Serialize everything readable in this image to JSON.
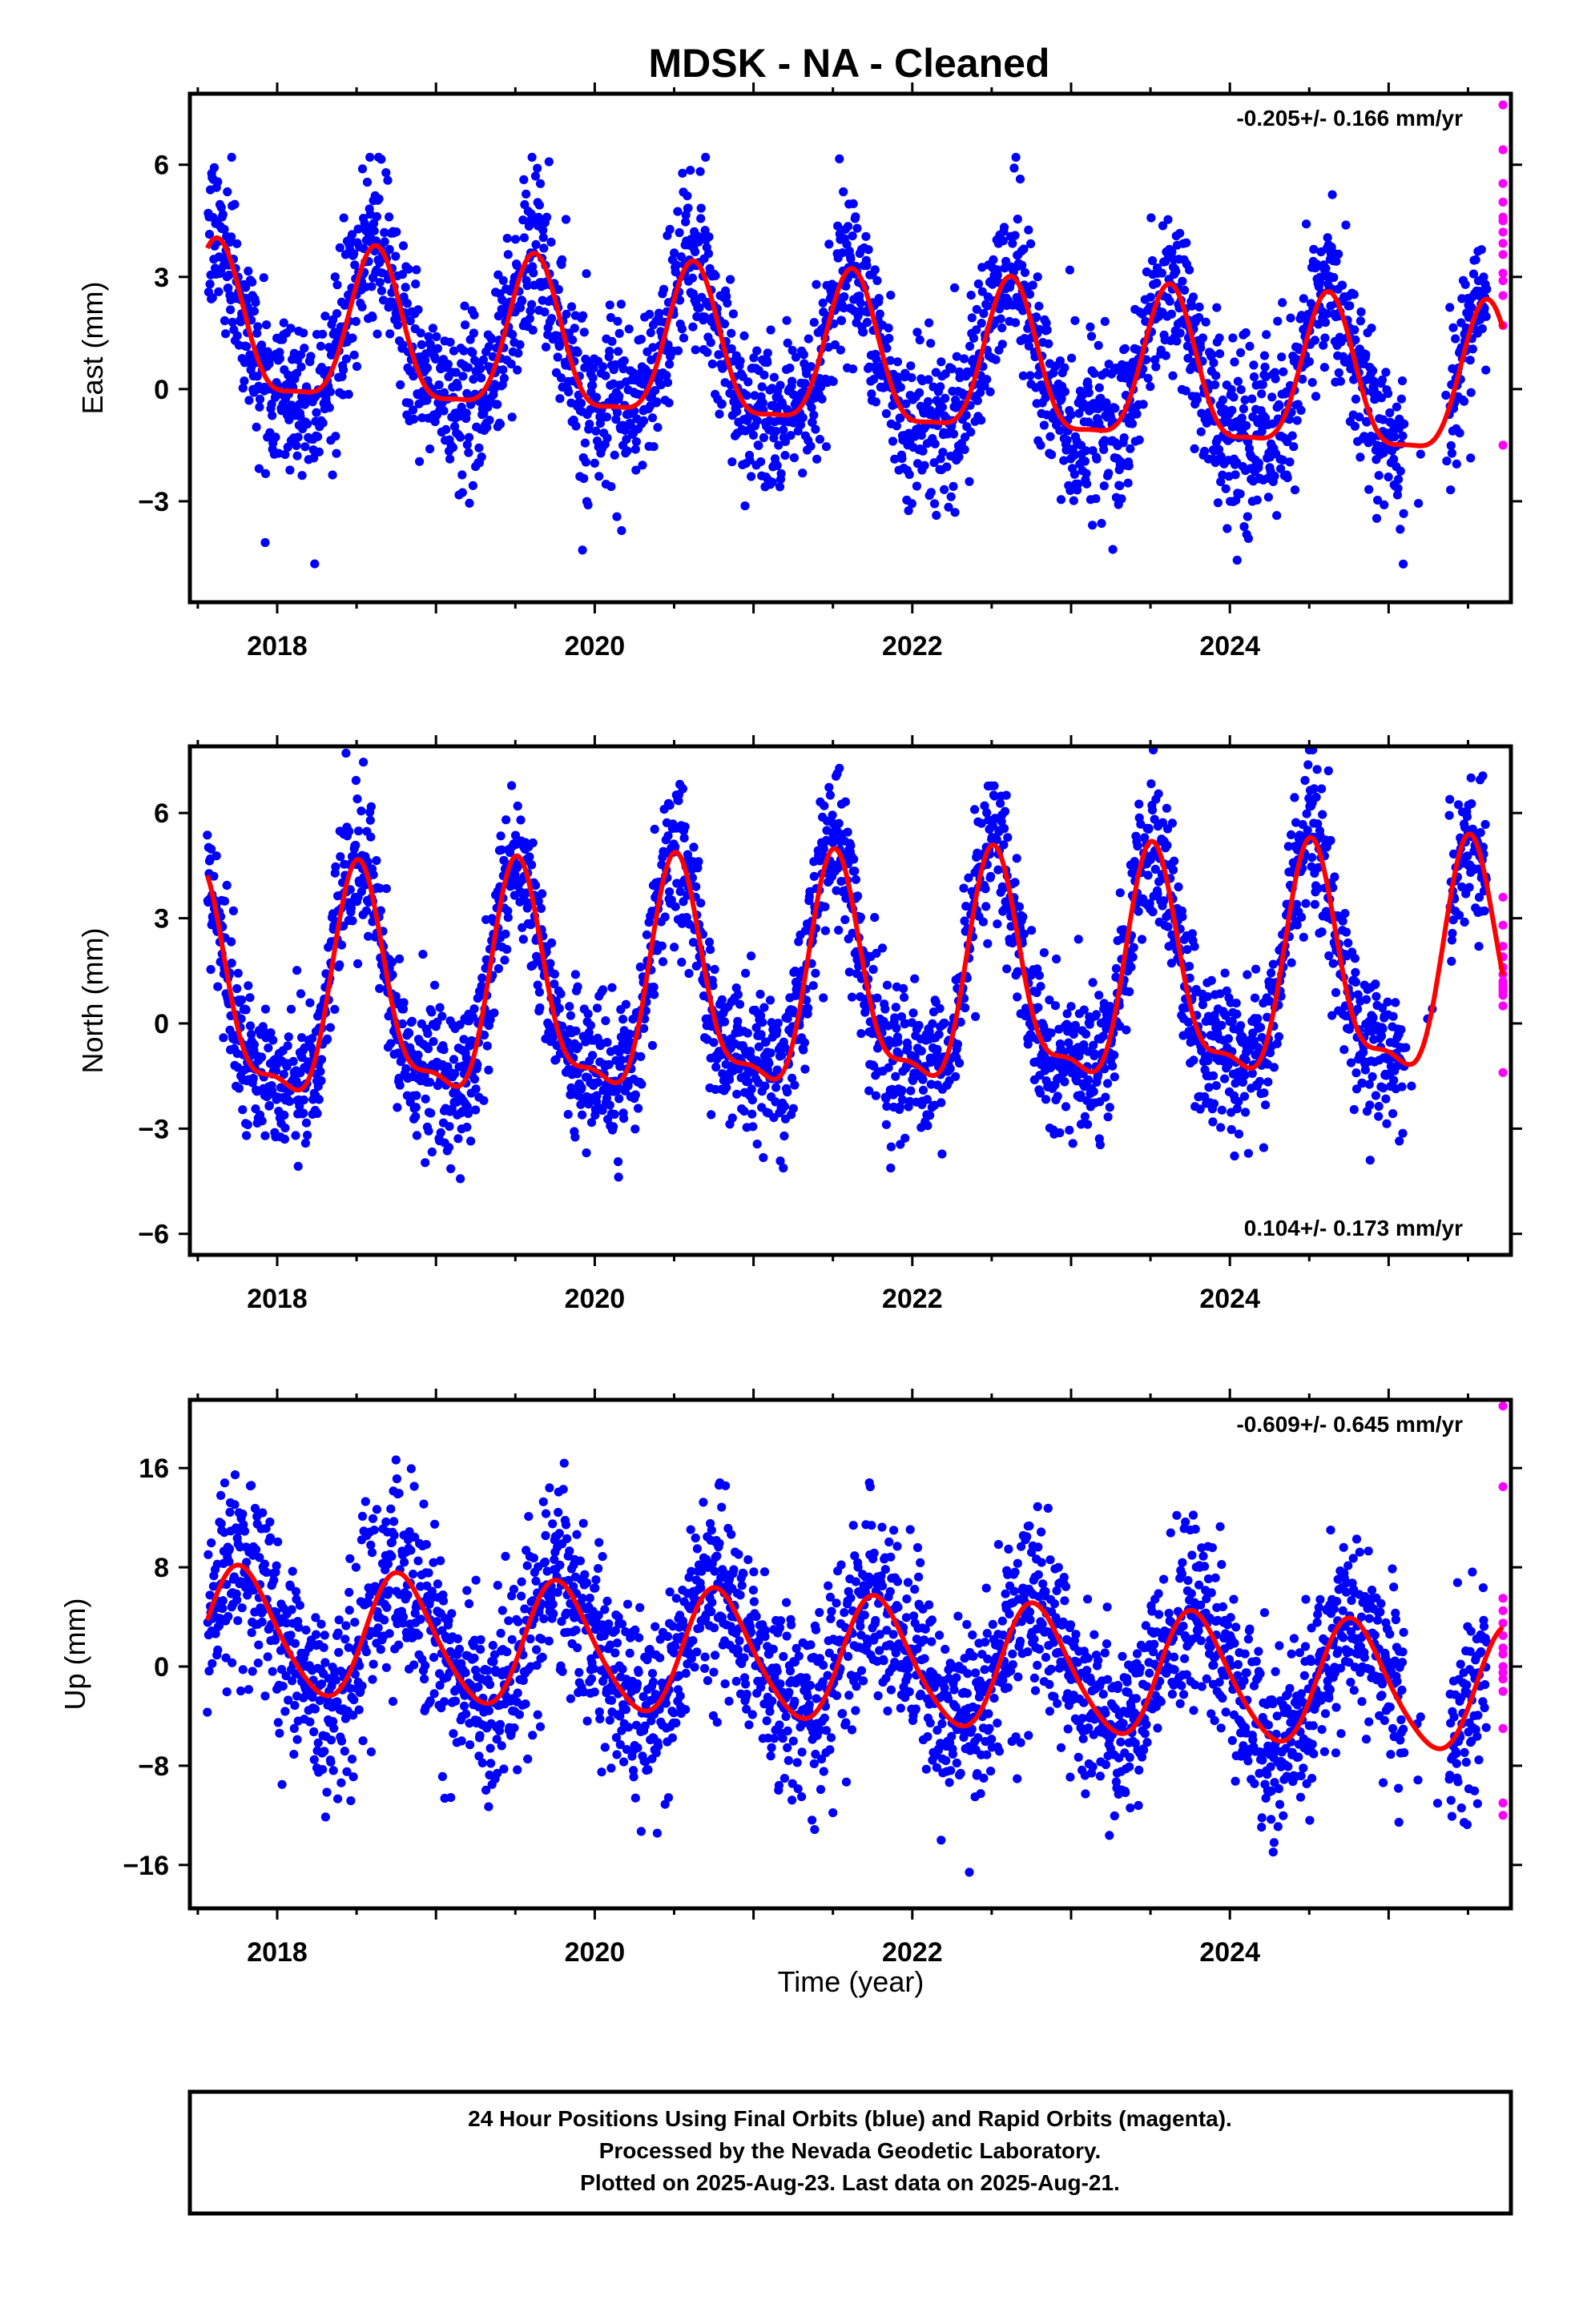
{
  "chart_data": {
    "type": "scatter",
    "title": "MDSK  - NA - Cleaned",
    "xlabel": "Time (year)",
    "xlim": [
      2017.45,
      2025.77
    ],
    "x_ticks": [
      "2018",
      "2020",
      "2022",
      "2024"
    ],
    "panels": [
      {
        "ylabel": "East (mm)",
        "ylim": [
          -5.7,
          7.9
        ],
        "y_ticks": [
          "6",
          "3",
          "0",
          "−3"
        ],
        "rate_label": "-0.205+/- 0.166 mm/yr",
        "rate_position": "top-right",
        "model": {
          "mean": 0.7,
          "trend": -0.205,
          "annual_amp": 2.0,
          "annual_peak": 0.62,
          "semi_amp": 0.55,
          "semi_peak": 0.12,
          "noise": 1.1,
          "extremes": [
            -5.4,
            6.2
          ]
        },
        "rapid_values": [
          7.6,
          6.4,
          5.5,
          5.0,
          4.6,
          4.5,
          4.2,
          3.9,
          3.6,
          3.1,
          2.9,
          2.5,
          1.7,
          -1.5
        ],
        "series_colors": {
          "final": "#0000ff",
          "rapid": "#ff00ff",
          "model": "#ff0000"
        }
      },
      {
        "ylabel": "North (mm)",
        "ylim": [
          -6.6,
          7.9
        ],
        "y_ticks": [
          "6",
          "3",
          "0",
          "−3",
          "−6"
        ],
        "rate_label": "0.104+/- 0.173 mm/yr",
        "rate_position": "bottom-right",
        "model": {
          "mean": 0.9,
          "trend": 0.104,
          "annual_amp": 3.1,
          "annual_peak": 0.52,
          "semi_amp": 1.0,
          "semi_peak": 0.5,
          "noise": 1.05,
          "extremes": [
            -6.3,
            7.8
          ]
        },
        "rapid_values": [
          3.6,
          2.8,
          2.2,
          1.9,
          1.6,
          1.4,
          1.2,
          1.1,
          1.0,
          0.9,
          0.8,
          0.5,
          -1.4
        ],
        "series_colors": {
          "final": "#0000ff",
          "rapid": "#ff00ff",
          "model": "#ff0000"
        }
      },
      {
        "ylabel": "Up (mm)",
        "ylim": [
          -19.5,
          21.5
        ],
        "y_ticks": [
          "16",
          "8",
          "0",
          "−8",
          "−16"
        ],
        "rate_label": "-0.609+/- 0.645 mm/yr",
        "rate_position": "top-right",
        "model": {
          "mean": 0.5,
          "trend": -0.609,
          "annual_amp": 5.0,
          "annual_peak": 0.78,
          "semi_amp": 0.6,
          "semi_peak": 0.2,
          "noise": 3.8,
          "extremes": [
            -18.5,
            21.0
          ]
        },
        "rapid_values": [
          21.0,
          14.5,
          5.5,
          4.5,
          3.5,
          2.5,
          1.5,
          1.0,
          0.0,
          -0.5,
          -1.0,
          -2.0,
          -5.0,
          -11.0,
          -12.0
        ],
        "series_colors": {
          "final": "#0000ff",
          "rapid": "#ff00ff",
          "model": "#ff0000"
        }
      }
    ],
    "series": [
      {
        "name": "Final Orbits",
        "color": "#0000ff"
      },
      {
        "name": "Rapid Orbits",
        "color": "#ff00ff"
      }
    ],
    "grid": false
  },
  "caption": {
    "line1": "24 Hour Positions Using Final Orbits (blue) and Rapid Orbits (magenta).",
    "line2": "Processed by the Nevada Geodetic Laboratory.",
    "line3": "Plotted on 2025-Aug-23. Last data on 2025-Aug-21."
  }
}
